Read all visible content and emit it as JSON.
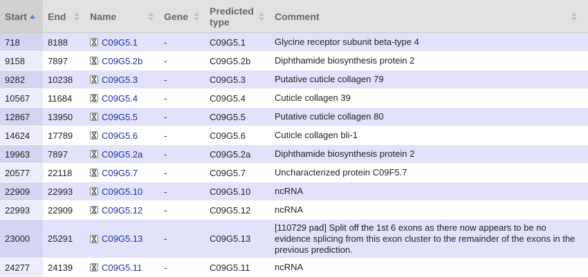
{
  "table": {
    "columns": {
      "start": "Start",
      "end": "End",
      "name": "Name",
      "gene": "Gene",
      "predicted_type": "Predicted type",
      "comment": "Comment"
    },
    "rows": [
      {
        "start": "718",
        "end": "8188",
        "name": "C09G5.1",
        "gene": "-",
        "predicted_type": "C09G5.1",
        "comment": "Glycine receptor subunit beta-type 4"
      },
      {
        "start": "9158",
        "end": "7897",
        "name": "C09G5.2b",
        "gene": "-",
        "predicted_type": "C09G5.2b",
        "comment": "Diphthamide biosynthesis protein 2"
      },
      {
        "start": "9282",
        "end": "10238",
        "name": "C09G5.3",
        "gene": "-",
        "predicted_type": "C09G5.3",
        "comment": "Putative cuticle collagen 79"
      },
      {
        "start": "10567",
        "end": "11684",
        "name": "C09G5.4",
        "gene": "-",
        "predicted_type": "C09G5.4",
        "comment": "Cuticle collagen 39"
      },
      {
        "start": "12867",
        "end": "13950",
        "name": "C09G5.5",
        "gene": "-",
        "predicted_type": "C09G5.5",
        "comment": "Putative cuticle collagen 80"
      },
      {
        "start": "14624",
        "end": "17789",
        "name": "C09G5.6",
        "gene": "-",
        "predicted_type": "C09G5.6",
        "comment": "Cuticle collagen bli-1"
      },
      {
        "start": "19963",
        "end": "7897",
        "name": "C09G5.2a",
        "gene": "-",
        "predicted_type": "C09G5.2a",
        "comment": "Diphthamide biosynthesis protein 2"
      },
      {
        "start": "20577",
        "end": "22118",
        "name": "C09G5.7",
        "gene": "-",
        "predicted_type": "C09G5.7",
        "comment": "Uncharacterized protein C09F5.7"
      },
      {
        "start": "22909",
        "end": "22993",
        "name": "C09G5.10",
        "gene": "-",
        "predicted_type": "C09G5.10",
        "comment": "ncRNA"
      },
      {
        "start": "22993",
        "end": "22909",
        "name": "C09G5.12",
        "gene": "-",
        "predicted_type": "C09G5.12",
        "comment": "ncRNA"
      },
      {
        "start": "23000",
        "end": "25291",
        "name": "C09G5.13",
        "gene": "-",
        "predicted_type": "C09G5.13",
        "comment": "[110729 pad] Split off the 1st 6 exons as there now appears to be no evidence splicing from this exon cluster to the remainder of the exons in the previous prediction."
      },
      {
        "start": "24277",
        "end": "24139",
        "name": "C09G5.11",
        "gene": "-",
        "predicted_type": "C09G5.11",
        "comment": "ncRNA"
      }
    ]
  },
  "icons": {
    "sort_active": "sort-ascending-icon",
    "sort_inactive": "sort-icon",
    "gene_structure": "gene-structure-icon"
  },
  "colors": {
    "header_bg": "#e2e2e2",
    "row_odd": "#e2e3fa",
    "row_even": "#ffffff",
    "link": "#1a2e9e",
    "sort_active": "#5b7fd6"
  }
}
